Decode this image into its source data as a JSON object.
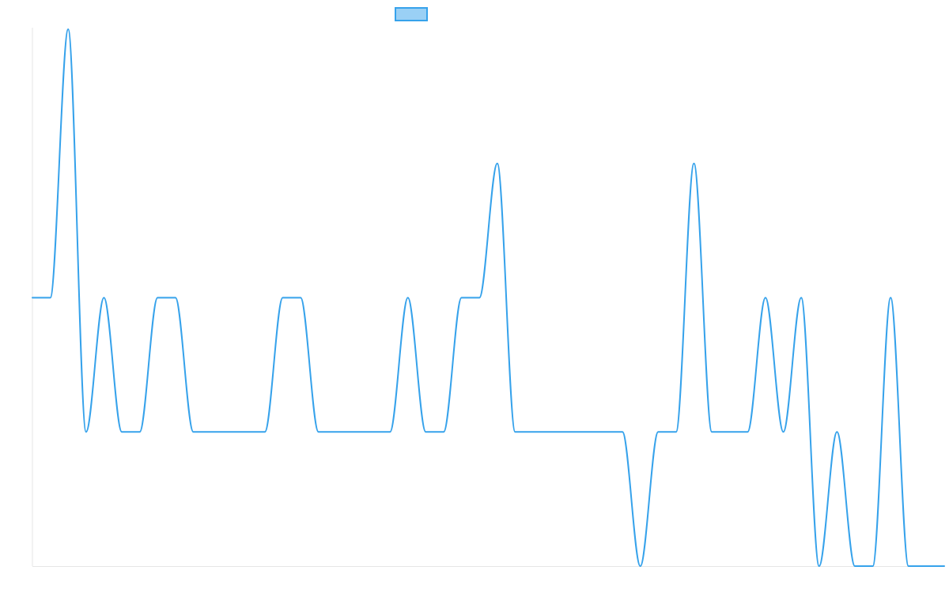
{
  "chart_data": {
    "type": "line",
    "title": "",
    "xlabel": "",
    "ylabel": "",
    "x": [
      0,
      1,
      2,
      3,
      4,
      5,
      6,
      7,
      8,
      9,
      10,
      11,
      12,
      13,
      14,
      15,
      16,
      17,
      18,
      19,
      20,
      21,
      22,
      23,
      24,
      25,
      26,
      27,
      28,
      29,
      30,
      31,
      32,
      33,
      34,
      35,
      36,
      37,
      38,
      39,
      40,
      41,
      42,
      43,
      44,
      45,
      46,
      47,
      48,
      49,
      50,
      51
    ],
    "ylim": [
      0,
      4
    ],
    "grid": false,
    "legend_position": "top",
    "series": [
      {
        "name": "",
        "color": "#36a2eb",
        "fill": "#9ad0f5",
        "values": [
          2,
          2,
          4,
          1,
          2,
          1,
          1,
          2,
          2,
          1,
          1,
          1,
          1,
          1,
          2,
          2,
          1,
          1,
          1,
          1,
          1,
          2,
          1,
          1,
          2,
          2,
          3,
          1,
          1,
          1,
          1,
          1,
          1,
          1,
          0,
          1,
          1,
          3,
          1,
          1,
          1,
          2,
          1,
          2,
          0,
          1,
          0,
          0,
          2,
          0,
          0,
          0
        ]
      }
    ]
  }
}
